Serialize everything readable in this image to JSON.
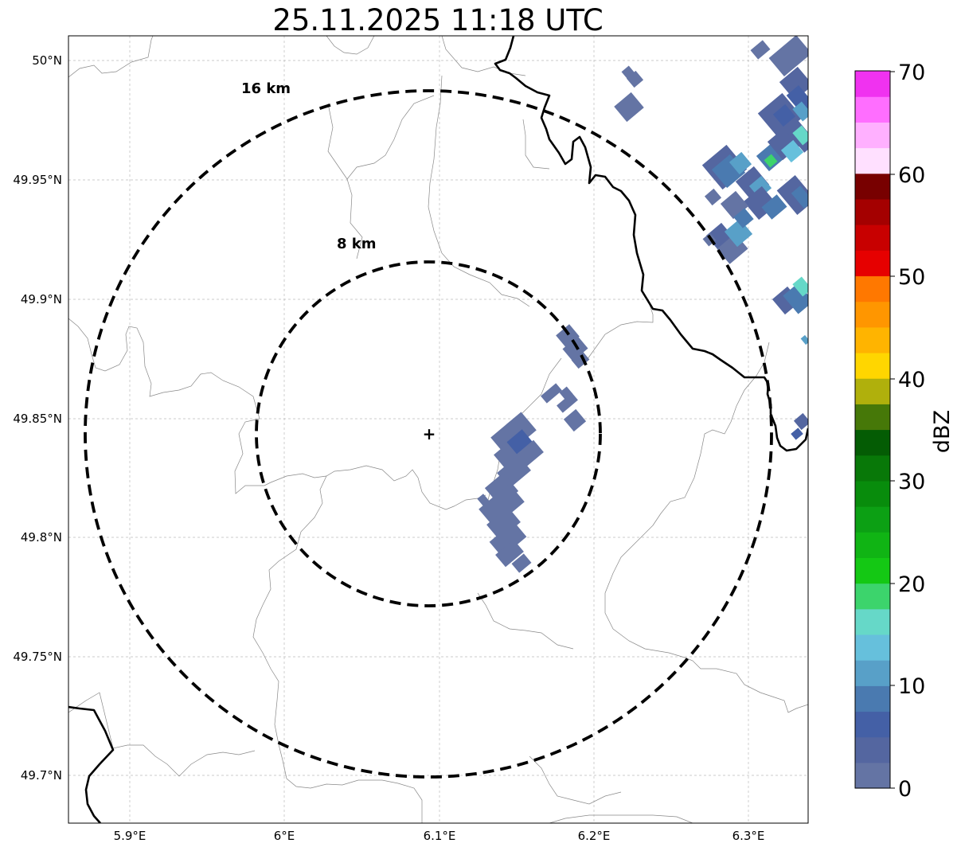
{
  "title": "25.11.2025 11:18 UTC",
  "axes": {
    "lon_ticks": [
      "5.9°E",
      "6°E",
      "6.1°E",
      "6.2°E",
      "6.3°E"
    ],
    "lat_ticks": [
      "50°N",
      "49.95°N",
      "49.9°N",
      "49.85°N",
      "49.8°N",
      "49.75°N",
      "49.7°N"
    ]
  },
  "rings": [
    {
      "label": "8 km",
      "radius_km": 8
    },
    {
      "label": "16 km",
      "radius_km": 16
    }
  ],
  "radar_site": {
    "symbol": "+"
  },
  "colorbar": {
    "label": "dBZ",
    "tick_labels": [
      "0",
      "10",
      "20",
      "30",
      "40",
      "50",
      "60",
      "70"
    ],
    "range": [
      0,
      70
    ],
    "step": 2.5,
    "colors": [
      "#6474a4",
      "#5466a0",
      "#4460a6",
      "#4a7ab0",
      "#58a0c8",
      "#66c0dc",
      "#66d8c8",
      "#3cd46c",
      "#14c814",
      "#10b414",
      "#0ca014",
      "#088c0c",
      "#087808",
      "#045c04",
      "#467808",
      "#b0b00c",
      "#ffd600",
      "#ffb400",
      "#ff9600",
      "#ff7800",
      "#e60000",
      "#c80000",
      "#a40000",
      "#780000",
      "#ffe0ff",
      "#ffb0ff",
      "#ff6eff",
      "#f032f0"
    ]
  },
  "map": {
    "grid": true,
    "lines": [
      "country-borders",
      "admin-borders",
      "rivers"
    ]
  }
}
